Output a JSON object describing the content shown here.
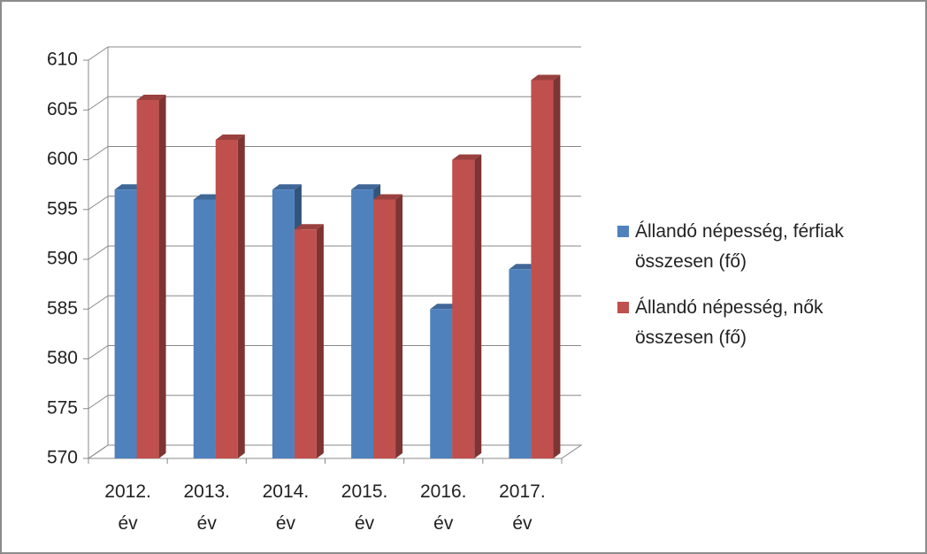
{
  "chart_data": {
    "type": "bar3d",
    "categories": [
      "2012. év",
      "2013. év",
      "2014. év",
      "2015. év",
      "2016. év",
      "2017. év"
    ],
    "series": [
      {
        "name": "Állandó népesség, férfiak összesen (fő)",
        "color": "#4f81bd",
        "values": [
          597,
          596,
          597,
          597,
          585,
          589
        ]
      },
      {
        "name": "Állandó népesség, nők összesen (fő)",
        "color": "#c0504d",
        "values": [
          606,
          602,
          593,
          596,
          600,
          608
        ]
      }
    ],
    "ylim": [
      570,
      610
    ],
    "yticks": [
      570,
      575,
      580,
      585,
      590,
      595,
      600,
      605,
      610
    ],
    "grid": true,
    "legend": "right"
  }
}
